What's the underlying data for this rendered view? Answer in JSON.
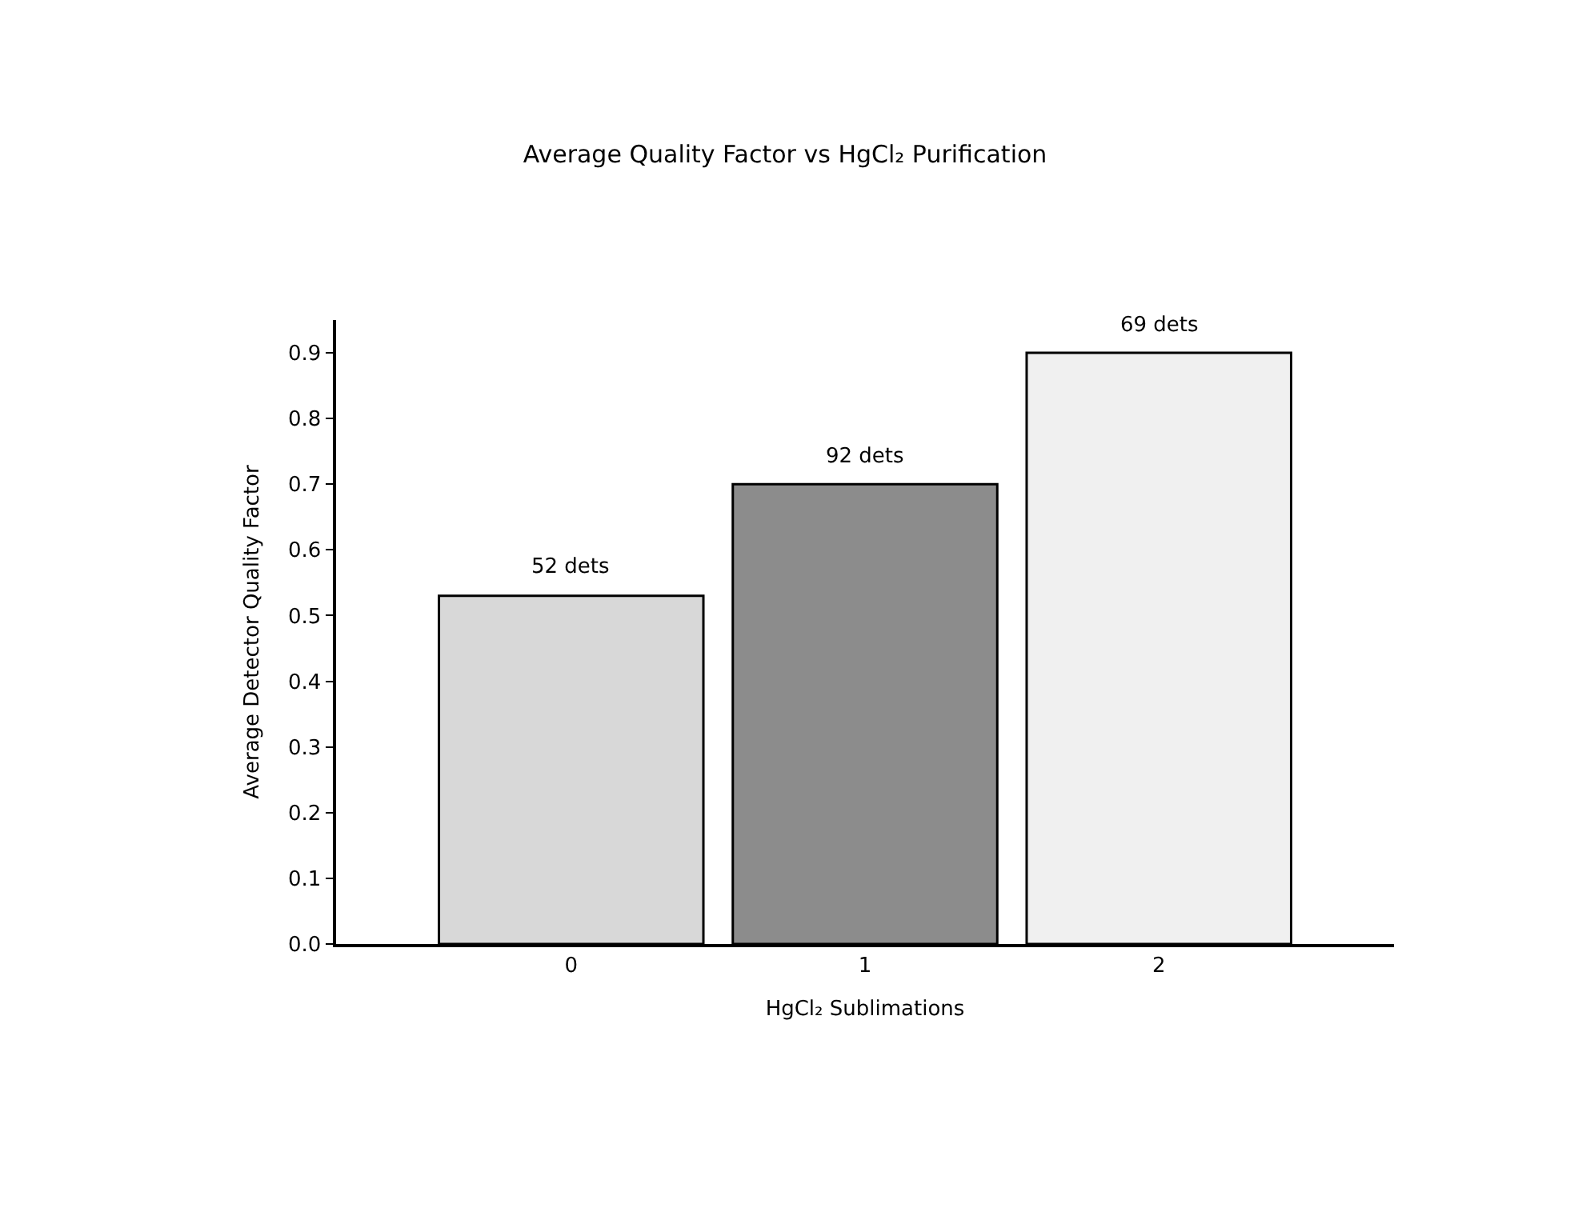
{
  "chart_data": {
    "type": "bar",
    "title": "Average Quality Factor vs HgCl₂ Purification",
    "xlabel": "HgCl₂ Sublimations",
    "ylabel": "Average Detector Quality Factor",
    "categories": [
      "0",
      "1",
      "2"
    ],
    "values": [
      0.53,
      0.7,
      0.9
    ],
    "colors": [
      "#d8d8d8",
      "#8c8c8c",
      "#f0f0f0"
    ],
    "annotations": [
      {
        "text": "52 dets",
        "x": "0",
        "y": 0.53
      },
      {
        "text": "92 dets",
        "x": "1",
        "y": 0.7
      },
      {
        "text": "69 dets",
        "x": "2",
        "y": 0.9
      }
    ],
    "ylim": [
      0,
      0.95
    ],
    "yticks": [
      {
        "value": 0,
        "label": "0.0"
      },
      0.1,
      0.2,
      0.3,
      0.4,
      0.5,
      0.6,
      0.7,
      0.8,
      0.9
    ]
  }
}
